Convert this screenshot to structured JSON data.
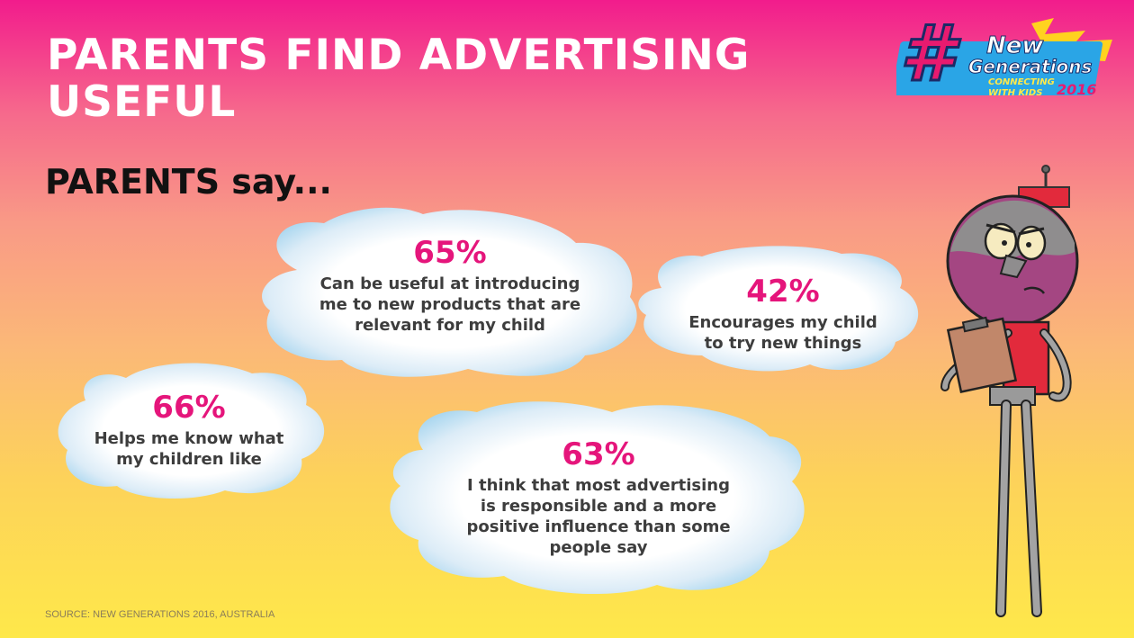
{
  "slide": {
    "title_line1": "PARENTS FIND ADVERTISING",
    "title_line2": "USEFUL",
    "subtitle": "PARENTS say..."
  },
  "clouds": [
    {
      "percent": "65%",
      "line1": "Can be useful at introducing",
      "line2": "me to new products that are",
      "line3": "relevant for my child"
    },
    {
      "percent": "42%",
      "line1": "Encourages my child",
      "line2": "to try new things"
    },
    {
      "percent": "66%",
      "line1": "Helps me know what",
      "line2": "my children like"
    },
    {
      "percent": "63%",
      "line1": "I think that most advertising",
      "line2": "is responsible and a more",
      "line3": "positive influence than some",
      "line4": "people say"
    }
  ],
  "logo": {
    "hash": "#",
    "line1": "New",
    "line2": "Generations",
    "line3": "CONNECTING",
    "line4": "WITH KIDS",
    "year": "2016"
  },
  "source": "SOURCE: NEW GENERATIONS 2016, AUSTRALIA",
  "colors": {
    "title": "#ffffff",
    "percent": "#e5157b",
    "body_text": "#3d3d3d",
    "gradient_top": "#f21c8c",
    "gradient_bottom": "#fee84a"
  }
}
